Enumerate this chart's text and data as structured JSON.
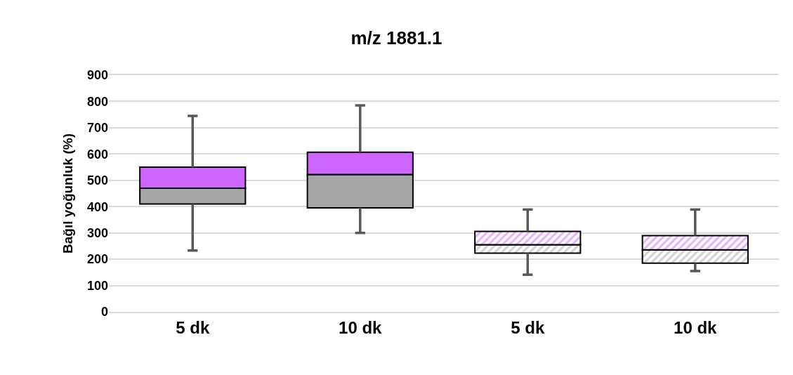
{
  "chart_data": {
    "type": "box",
    "title": "m/z 1881.1",
    "ylabel": "Bağıl yoğunluk (%)",
    "categories": [
      "5 dk",
      "10 dk",
      "5 dk",
      "10 dk"
    ],
    "series": [
      {
        "colors": [
          [
            "#a6a6a6",
            "#cc66ff"
          ],
          [
            "#a6a6a6",
            "#cc66ff"
          ],
          null,
          null
        ],
        "boxes": [
          {
            "low": 233,
            "q1": 410,
            "median": 470,
            "q3": 550,
            "high": 745
          },
          {
            "low": 300,
            "q1": 395,
            "median": 522,
            "q3": 607,
            "high": 785
          },
          null,
          null
        ]
      },
      {
        "colors": [
          null,
          null,
          [
            "#a6a6a6",
            "#cc66ff"
          ],
          [
            "#a6a6a6",
            "#cc66ff"
          ]
        ],
        "boxes": [
          null,
          null,
          {
            "low": 141,
            "q1": 223,
            "median": 255,
            "q3": 306,
            "high": 389
          },
          {
            "low": 155,
            "q1": 185,
            "median": 236,
            "q3": 290,
            "high": 389
          }
        ]
      }
    ],
    "ylim": [
      0,
      900
    ],
    "yticks": [
      0,
      100,
      200,
      300,
      400,
      500,
      600,
      700,
      800,
      900
    ],
    "grid": "y"
  }
}
